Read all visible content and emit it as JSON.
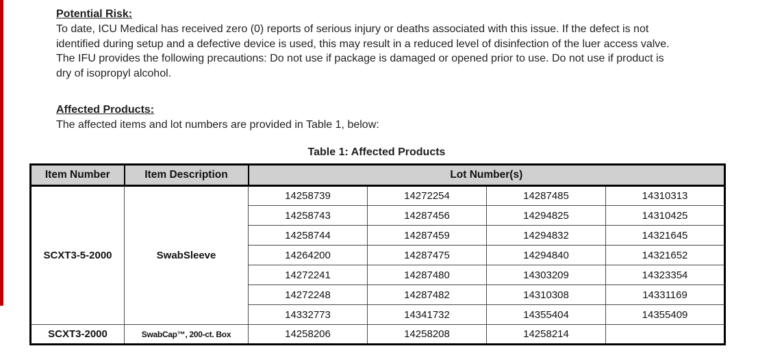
{
  "colors": {
    "change_bar": "#c00000",
    "table_header_bg": "#d0d0d0",
    "table_border": "#000000",
    "text": "#1f1f1f"
  },
  "document": {
    "risk": {
      "heading": "Potential Risk:",
      "lines": [
        "To date, ICU Medical has received zero (0) reports of serious injury or deaths associated with this issue. If the defect is not",
        "identified during setup and a defective device is used, this may result in a reduced level of disinfection of the luer access valve.",
        "The IFU provides the following precautions: Do not use if package is damaged or opened prior to use. Do not use if product is",
        "dry of isopropyl alcohol."
      ]
    },
    "affected": {
      "heading": "Affected Products:",
      "line": "The affected items and lot numbers are provided in Table 1, below:"
    },
    "table": {
      "title": "Table 1: Affected Products",
      "headers": [
        "Item Number",
        "Item Description",
        "Lot Number(s)"
      ],
      "groups": [
        {
          "item_number": "SCXT3-5-2000",
          "item_description": "SwabSleeve",
          "lot_rows": [
            [
              "14258739",
              "14272254",
              "14287485",
              "14310313"
            ],
            [
              "14258743",
              "14287456",
              "14294825",
              "14310425"
            ],
            [
              "14258744",
              "14287459",
              "14294832",
              "14321645"
            ],
            [
              "14264200",
              "14287475",
              "14294840",
              "14321652"
            ],
            [
              "14272241",
              "14287480",
              "14303209",
              "14323354"
            ],
            [
              "14272248",
              "14287482",
              "14310308",
              "14331169"
            ],
            [
              "14332773",
              "14341732",
              "14355404",
              "14355409"
            ]
          ]
        },
        {
          "item_number": "SCXT3-2000",
          "item_description": "SwabCap™, 200-ct. Box",
          "lot_rows": [
            [
              "14258206",
              "14258208",
              "14258214",
              ""
            ]
          ]
        }
      ]
    }
  }
}
